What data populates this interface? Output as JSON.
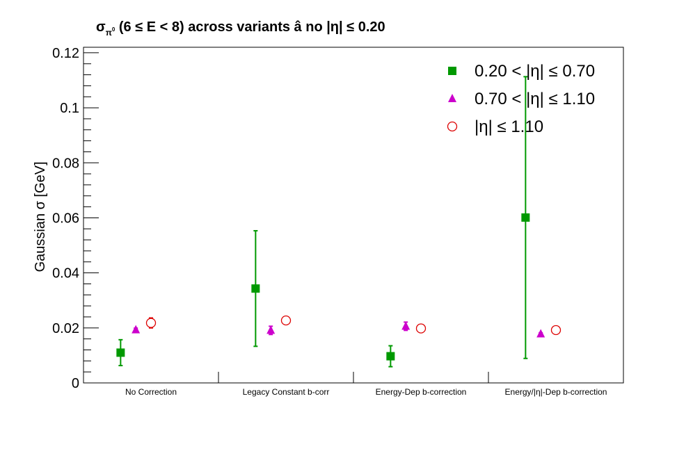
{
  "chart_data": {
    "type": "scatter",
    "title": {
      "sigma": "σ",
      "sub": "π",
      "sup": "0",
      "rest": " (6 ≤ E < 8) across variants  â  no |η| ≤ 0.20"
    },
    "ylabel": "Gaussian σ  [GeV]",
    "xlabel": "",
    "ylim": [
      0,
      0.122
    ],
    "y_ticks": [
      "0",
      "0.02",
      "0.04",
      "0.06",
      "0.08",
      "0.1",
      "0.12"
    ],
    "y_tick_values": [
      0,
      0.02,
      0.04,
      0.06,
      0.08,
      0.1,
      0.12
    ],
    "categories": [
      "No Correction",
      "Legacy Constant b-corr",
      "Energy-Dep b-correction",
      "Energy/|η|-Dep b-correction"
    ],
    "legend_position": "top-right",
    "grid": false,
    "series": [
      {
        "name": "0.20 < |η| ≤ 0.70",
        "marker": "square",
        "color": "#009900",
        "values": [
          0.011,
          0.0343,
          0.0097,
          0.0601
        ],
        "errors": [
          0.0047,
          0.021,
          0.0038,
          0.0512
        ]
      },
      {
        "name": "0.70 < |η| ≤ 1.10",
        "marker": "triangle",
        "color": "#cc00cc",
        "values": [
          0.0193,
          0.0191,
          0.0206,
          0.0178
        ],
        "errors": [
          0.0006,
          0.0015,
          0.0015,
          0.0004
        ]
      },
      {
        "name": "|η| ≤ 1.10",
        "marker": "open-circle",
        "color": "#dd0000",
        "values": [
          0.0218,
          0.0227,
          0.0198,
          0.0192
        ],
        "errors": [
          0.0018,
          0.0013,
          0.0004,
          0.0004
        ]
      }
    ]
  }
}
